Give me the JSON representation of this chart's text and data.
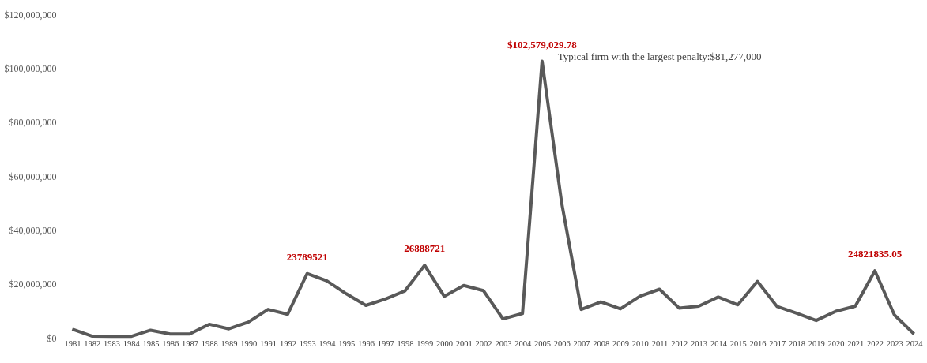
{
  "chart_data": {
    "type": "line",
    "categories": [
      "1981",
      "1982",
      "1983",
      "1984",
      "1985",
      "1986",
      "1987",
      "1988",
      "1989",
      "1990",
      "1991",
      "1992",
      "1993",
      "1994",
      "1995",
      "1996",
      "1997",
      "1998",
      "1999",
      "2000",
      "2001",
      "2002",
      "2003",
      "2004",
      "2005",
      "2006",
      "2007",
      "2008",
      "2009",
      "2010",
      "2011",
      "2012",
      "2013",
      "2014",
      "2015",
      "2016",
      "2017",
      "2018",
      "2019",
      "2020",
      "2021",
      "2022",
      "2023",
      "2024"
    ],
    "series": [
      {
        "color": "#595959",
        "values": [
          3200000,
          600000,
          500000,
          500000,
          2800000,
          1400000,
          1400000,
          5000000,
          3300000,
          5800000,
          10500000,
          8700000,
          23789521,
          21100000,
          16300000,
          12000000,
          14400000,
          17400000,
          26888721,
          15400000,
          19400000,
          17500000,
          7000000,
          9000000,
          102579029.78,
          50000000,
          10500000,
          13300000,
          10700000,
          15400000,
          18000000,
          11000000,
          11700000,
          15100000,
          12200000,
          20900000,
          11600000,
          9100000,
          6400000,
          9800000,
          11700000,
          24821835.05,
          8400000,
          1400000
        ]
      }
    ],
    "ylim": [
      0,
      120000000
    ],
    "yticks": [
      {
        "value": 0,
        "label": "$0"
      },
      {
        "value": 20000000,
        "label": "$20,000,000"
      },
      {
        "value": 40000000,
        "label": "$40,000,000"
      },
      {
        "value": 60000000,
        "label": "$60,000,000"
      },
      {
        "value": 80000000,
        "label": "$80,000,000"
      },
      {
        "value": 100000000,
        "label": "$100,000,000"
      },
      {
        "value": 120000000,
        "label": "$120,000,000"
      }
    ],
    "grid": false,
    "marker": "none",
    "line_style": "solid",
    "annotations": [
      {
        "text": "23789521",
        "x": "1993",
        "y": 23789521
      },
      {
        "text": "26888721",
        "x": "1999",
        "y": 26888721
      },
      {
        "text": "$102,579,029.78",
        "x": "2005",
        "y": 102579029.78
      },
      "Typical firm with the largest penalty:$81,277,000",
      {
        "text": "24821835.05",
        "x": "2022",
        "y": 24821835.05
      }
    ]
  }
}
